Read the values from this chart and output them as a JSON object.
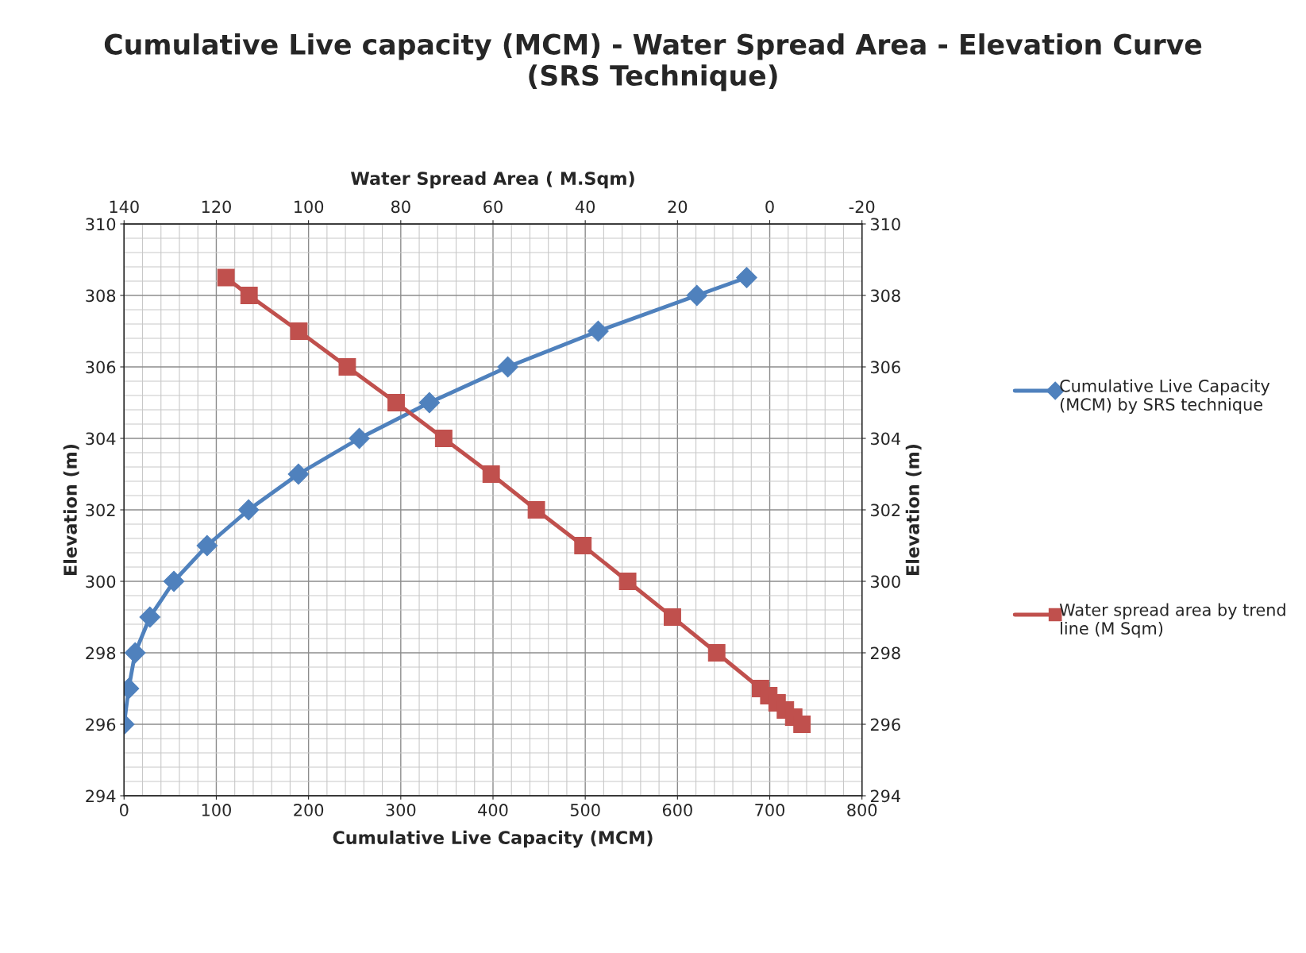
{
  "chart_data": {
    "type": "line",
    "title": "Cumulative Live capacity (MCM) - Water Spread Area - Elevation Curve\n(SRS Technique)",
    "xlabel": "Cumulative Live Capacity (MCM)",
    "x2label": "Water Spread Area ( M.Sqm)",
    "ylabel": "Elevation (m)",
    "y2label": "Elevation (m)",
    "xlim": [
      0,
      800
    ],
    "xticks": [
      0,
      100,
      200,
      300,
      400,
      500,
      600,
      700,
      800
    ],
    "x2lim": [
      140,
      -20
    ],
    "x2ticks": [
      140,
      120,
      100,
      80,
      60,
      40,
      20,
      0,
      -20
    ],
    "ylim": [
      294,
      310
    ],
    "yticks": [
      294,
      296,
      298,
      300,
      302,
      304,
      306,
      308,
      310
    ],
    "y2lim": [
      294,
      310
    ],
    "y2ticks": [
      294,
      296,
      298,
      300,
      302,
      304,
      306,
      308,
      310
    ],
    "grid": true,
    "legend": "right",
    "line_style": "solid",
    "series": [
      {
        "name": "Cumulative Live Capacity (MCM) by SRS technique",
        "color": "#4f81bd",
        "marker": "diamond",
        "x": [
          0,
          5,
          12,
          28,
          54,
          90,
          135,
          189,
          255,
          331,
          416,
          514,
          621,
          675
        ],
        "values": [
          296,
          297,
          298,
          299,
          300,
          301,
          302,
          303,
          304,
          305,
          306,
          307,
          308,
          308.5
        ]
      },
      {
        "name": "Water spread area by trend line (M Sqm)",
        "color": "#c0504d",
        "marker": "square",
        "axis": "x2",
        "x": [
          117.9,
          112.9,
          102.1,
          91.6,
          81.0,
          70.7,
          60.4,
          50.6,
          40.5,
          30.8,
          21.1,
          11.5,
          2.0,
          0.2,
          -1.6,
          -3.4,
          -5.2,
          -7.0
        ],
        "values": [
          308.5,
          308,
          307,
          306,
          305,
          304,
          303,
          302,
          301,
          300,
          299,
          298,
          297,
          296.8,
          296.6,
          296.4,
          296.2,
          296.0
        ]
      }
    ]
  }
}
